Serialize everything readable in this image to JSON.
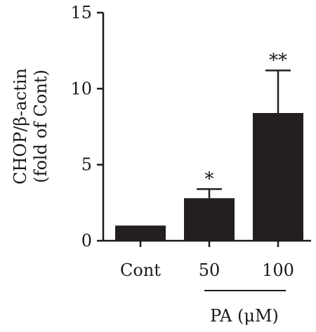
{
  "chart_data": {
    "type": "bar",
    "categories": [
      "Cont",
      "50",
      "100"
    ],
    "values": [
      1.0,
      2.8,
      8.4
    ],
    "error_upper": [
      1.0,
      3.4,
      11.2
    ],
    "significance": [
      "",
      "*",
      "**"
    ],
    "ylabel_line1": "CHOP/β-actin",
    "ylabel_line2": "(fold of Cont)",
    "group_label": "PA (μM)",
    "ylim": [
      0,
      15
    ],
    "yticks": [
      0,
      5,
      10,
      15
    ],
    "bar_color": "#231f20",
    "grid": false
  }
}
